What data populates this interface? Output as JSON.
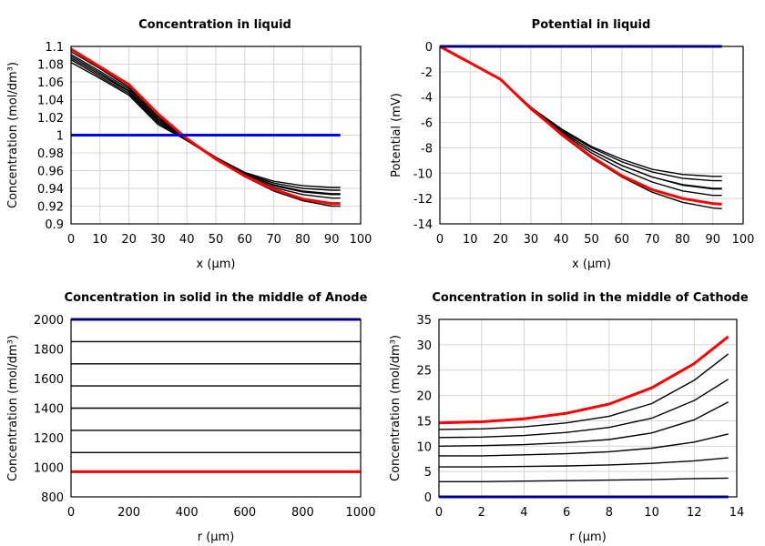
{
  "chart_data": [
    {
      "type": "line",
      "title": "Concentration in liquid",
      "xlabel": "x (µm)",
      "ylabel": "Concentration (mol/dm³)",
      "xlim": [
        0,
        100
      ],
      "ylim": [
        0.9,
        1.1
      ],
      "xticks": [
        "0",
        "10",
        "20",
        "30",
        "40",
        "50",
        "60",
        "70",
        "80",
        "90",
        "100"
      ],
      "yticks": [
        "0.9",
        "0.92",
        "0.94",
        "0.96",
        "0.98",
        "1",
        "1.02",
        "1.04",
        "1.06",
        "1.08",
        "1.1"
      ],
      "grid": true,
      "x": [
        0,
        10,
        20,
        30,
        40,
        50,
        60,
        70,
        80,
        90,
        93
      ],
      "series": [
        {
          "color": "#000000",
          "values": [
            1.094,
            1.075,
            1.054,
            1.022,
            0.995,
            0.975,
            0.958,
            0.948,
            0.943,
            0.941,
            0.941
          ]
        },
        {
          "color": "#000000",
          "values": [
            1.091,
            1.072,
            1.052,
            1.02,
            0.995,
            0.975,
            0.957,
            0.946,
            0.94,
            0.938,
            0.938
          ]
        },
        {
          "color": "#000000",
          "values": [
            1.089,
            1.07,
            1.05,
            1.018,
            0.995,
            0.974,
            0.956,
            0.944,
            0.937,
            0.934,
            0.934
          ]
        },
        {
          "color": "#000000",
          "values": [
            1.087,
            1.068,
            1.049,
            1.016,
            0.994,
            0.974,
            0.956,
            0.943,
            0.936,
            0.933,
            0.933
          ]
        },
        {
          "color": "#000000",
          "values": [
            1.085,
            1.066,
            1.047,
            1.014,
            0.994,
            0.974,
            0.955,
            0.941,
            0.933,
            0.929,
            0.929
          ]
        },
        {
          "color": "#000000",
          "values": [
            1.082,
            1.064,
            1.045,
            1.012,
            0.994,
            0.973,
            0.953,
            0.937,
            0.926,
            0.92,
            0.92
          ]
        },
        {
          "color": "#ff0000",
          "values": [
            1.097,
            1.077,
            1.057,
            1.024,
            0.996,
            0.973,
            0.954,
            0.939,
            0.928,
            0.923,
            0.923
          ]
        },
        {
          "color": "#0000ff",
          "values": [
            1,
            1,
            1,
            1,
            1,
            1,
            1,
            1,
            1,
            1,
            1
          ]
        }
      ]
    },
    {
      "type": "line",
      "title": "Potential in liquid",
      "xlabel": "x (µm)",
      "ylabel": "Potential (mV)",
      "xlim": [
        0,
        100
      ],
      "ylim": [
        -14,
        0
      ],
      "xticks": [
        "0",
        "10",
        "20",
        "30",
        "40",
        "50",
        "60",
        "70",
        "80",
        "90",
        "100"
      ],
      "yticks": [
        "-14",
        "-12",
        "-10",
        "-8",
        "-6",
        "-4",
        "-2",
        "0"
      ],
      "grid": true,
      "x": [
        0,
        10,
        20,
        30,
        40,
        50,
        60,
        70,
        80,
        90,
        93
      ],
      "series": [
        {
          "color": "#000000",
          "values": [
            0,
            -1.3,
            -2.6,
            -4.8,
            -6.5,
            -7.9,
            -8.9,
            -9.7,
            -10.1,
            -10.25,
            -10.25
          ]
        },
        {
          "color": "#000000",
          "values": [
            0,
            -1.3,
            -2.6,
            -4.8,
            -6.6,
            -8.0,
            -9.1,
            -9.9,
            -10.4,
            -10.6,
            -10.6
          ]
        },
        {
          "color": "#000000",
          "values": [
            0,
            -1.3,
            -2.6,
            -4.8,
            -6.7,
            -8.2,
            -9.4,
            -10.3,
            -10.9,
            -11.2,
            -11.2
          ]
        },
        {
          "color": "#000000",
          "values": [
            0,
            -1.3,
            -2.6,
            -4.8,
            -6.7,
            -8.2,
            -9.4,
            -10.3,
            -10.95,
            -11.25,
            -11.25
          ]
        },
        {
          "color": "#000000",
          "values": [
            0,
            -1.3,
            -2.6,
            -4.8,
            -6.8,
            -8.4,
            -9.7,
            -10.7,
            -11.4,
            -11.75,
            -11.75
          ]
        },
        {
          "color": "#000000",
          "values": [
            0,
            -1.3,
            -2.6,
            -4.9,
            -7.0,
            -8.8,
            -10.3,
            -11.5,
            -12.3,
            -12.75,
            -12.8
          ]
        },
        {
          "color": "#ff0000",
          "values": [
            0,
            -1.3,
            -2.6,
            -4.9,
            -6.9,
            -8.7,
            -10.2,
            -11.3,
            -12.0,
            -12.4,
            -12.45
          ]
        },
        {
          "color": "#0000ff",
          "values": [
            0,
            0,
            0,
            0,
            0,
            0,
            0,
            0,
            0,
            0,
            0
          ]
        }
      ]
    },
    {
      "type": "line",
      "title": "Concentration in solid in the middle of Anode",
      "xlabel": "r (µm)",
      "ylabel": "Concentration (mol/dm³)",
      "xlim": [
        0,
        1000
      ],
      "ylim": [
        800,
        2000
      ],
      "xticks": [
        "0",
        "200",
        "400",
        "600",
        "800",
        "1000"
      ],
      "yticks": [
        "800",
        "1000",
        "1200",
        "1400",
        "1600",
        "1800",
        "2000"
      ],
      "grid": false,
      "x": [
        0,
        1000
      ],
      "series": [
        {
          "color": "#000000",
          "values": [
            1850,
            1850
          ]
        },
        {
          "color": "#000000",
          "values": [
            1700,
            1700
          ]
        },
        {
          "color": "#000000",
          "values": [
            1550,
            1550
          ]
        },
        {
          "color": "#000000",
          "values": [
            1400,
            1400
          ]
        },
        {
          "color": "#000000",
          "values": [
            1250,
            1250
          ]
        },
        {
          "color": "#000000",
          "values": [
            1100,
            1100
          ]
        },
        {
          "color": "#ff0000",
          "values": [
            970,
            970
          ]
        },
        {
          "color": "#0000ff",
          "values": [
            2000,
            2000
          ]
        }
      ]
    },
    {
      "type": "line",
      "title": "Concentration in solid in the middle of Cathode",
      "xlabel": "r (µm)",
      "ylabel": "Concentration (mol/dm³)",
      "xlim": [
        0,
        14
      ],
      "ylim": [
        0,
        35
      ],
      "xticks": [
        "0",
        "2",
        "4",
        "6",
        "8",
        "10",
        "12",
        "14"
      ],
      "yticks": [
        "0",
        "5",
        "10",
        "15",
        "20",
        "25",
        "30",
        "35"
      ],
      "grid": true,
      "x": [
        0,
        2,
        4,
        6,
        8,
        10,
        12,
        13.6
      ],
      "series": [
        {
          "color": "#000000",
          "values": [
            13.3,
            13.4,
            13.8,
            14.6,
            15.9,
            18.4,
            23.0,
            28.2
          ]
        },
        {
          "color": "#000000",
          "values": [
            11.7,
            11.8,
            12.1,
            12.7,
            13.7,
            15.5,
            19.0,
            23.2
          ]
        },
        {
          "color": "#000000",
          "values": [
            10.0,
            10.1,
            10.3,
            10.7,
            11.3,
            12.6,
            15.2,
            18.7
          ]
        },
        {
          "color": "#000000",
          "values": [
            8.1,
            8.1,
            8.3,
            8.5,
            8.9,
            9.6,
            10.8,
            12.4
          ]
        },
        {
          "color": "#000000",
          "values": [
            5.9,
            5.9,
            6.0,
            6.1,
            6.3,
            6.6,
            7.1,
            7.7
          ]
        },
        {
          "color": "#000000",
          "values": [
            3.0,
            3.0,
            3.1,
            3.2,
            3.3,
            3.4,
            3.6,
            3.7
          ]
        },
        {
          "color": "#ff0000",
          "values": [
            14.6,
            14.8,
            15.4,
            16.5,
            18.3,
            21.5,
            26.3,
            31.6
          ]
        },
        {
          "color": "#0000ff",
          "values": [
            0,
            0,
            0,
            0,
            0,
            0,
            0,
            0
          ]
        }
      ]
    }
  ]
}
